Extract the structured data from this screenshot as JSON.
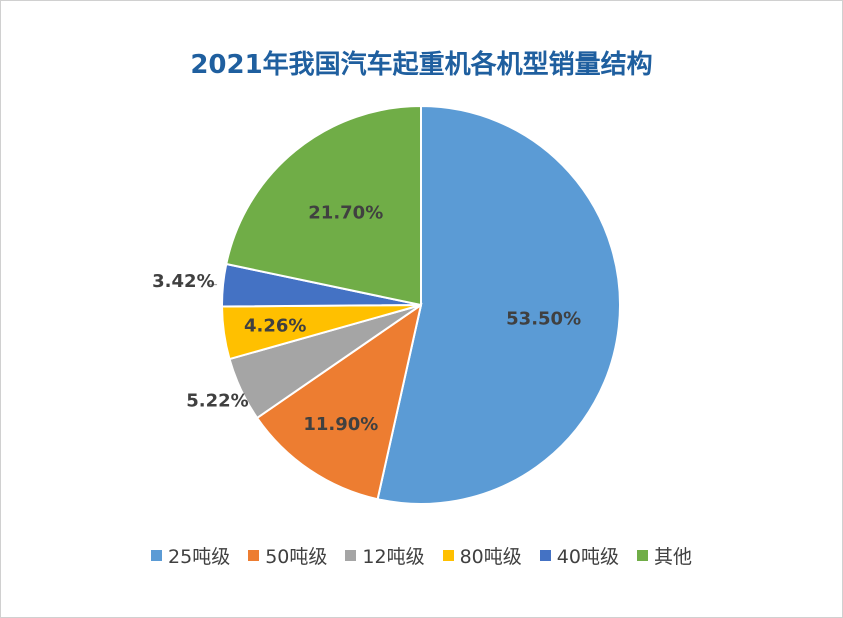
{
  "chart_data": {
    "type": "pie",
    "title": "2021年我国汽车起重机各机型销量结构",
    "categories": [
      "25吨级",
      "50吨级",
      "12吨级",
      "80吨级",
      "40吨级",
      "其他"
    ],
    "values": [
      53.5,
      11.9,
      5.22,
      4.26,
      3.42,
      21.7
    ],
    "data_labels": [
      "53.50%",
      "11.90%",
      "5.22%",
      "4.26%",
      "3.42%",
      "21.70%"
    ],
    "colors": [
      "#5b9bd5",
      "#ed7d31",
      "#a5a5a5",
      "#ffc000",
      "#4472c4",
      "#70ad47"
    ],
    "legend": "bottom"
  }
}
